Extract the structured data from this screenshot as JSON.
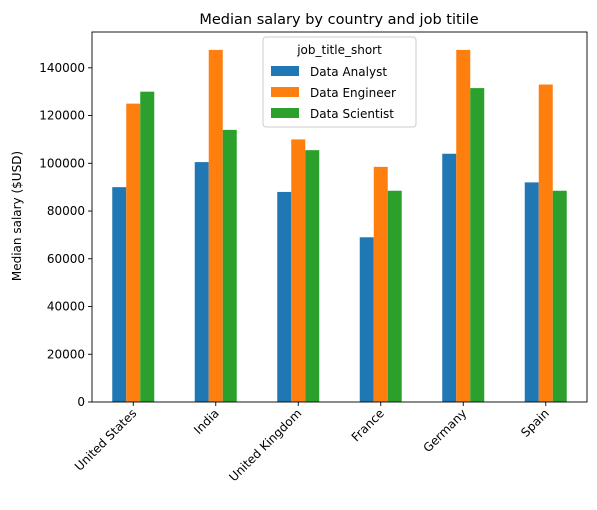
{
  "chart_data": {
    "type": "bar",
    "title": "Median salary by country and job titile",
    "xlabel": "",
    "ylabel": "Median salary ($USD)",
    "categories": [
      "United States",
      "India",
      "United Kingdom",
      "France",
      "Germany",
      "Spain"
    ],
    "series": [
      {
        "name": "Data Analyst",
        "color": "#1f77b4",
        "values": [
          90000,
          100500,
          88000,
          69000,
          104000,
          92000
        ]
      },
      {
        "name": "Data Engineer",
        "color": "#ff7f0e",
        "values": [
          125000,
          147500,
          110000,
          98500,
          147500,
          133000
        ]
      },
      {
        "name": "Data Scientist",
        "color": "#2ca02c",
        "values": [
          130000,
          114000,
          105500,
          88500,
          131500,
          88500
        ]
      }
    ],
    "ylim": [
      0,
      155000
    ],
    "yticks": [
      0,
      20000,
      40000,
      60000,
      80000,
      100000,
      120000,
      140000
    ],
    "legend": {
      "title": "job_title_short",
      "position": "top-center"
    },
    "grid": false
  }
}
